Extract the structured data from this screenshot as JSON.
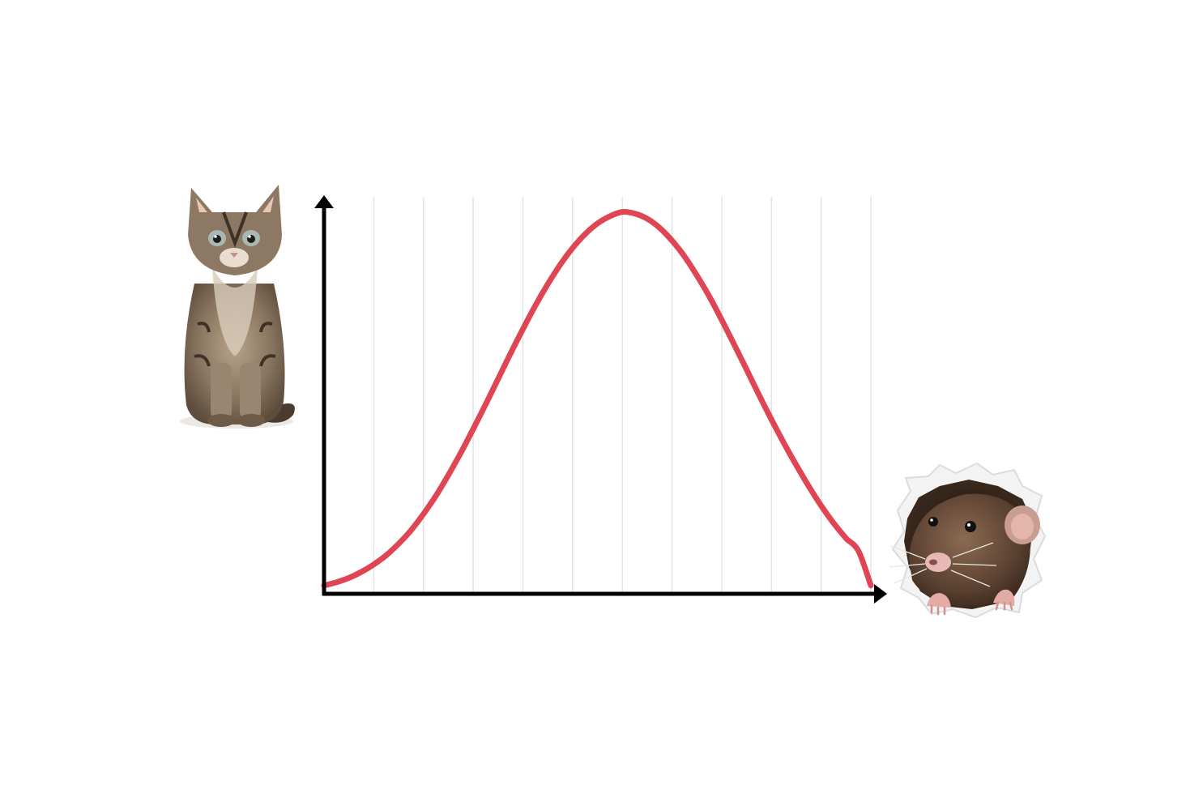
{
  "chart_data": {
    "type": "line",
    "title": "",
    "xlabel": "",
    "ylabel": "",
    "xlim": [
      0,
      11
    ],
    "ylim": [
      0,
      1
    ],
    "grid": "vertical",
    "x": [
      0,
      0.25,
      0.5,
      0.75,
      1,
      1.25,
      1.5,
      1.75,
      2,
      2.25,
      2.5,
      2.75,
      3,
      3.25,
      3.5,
      3.75,
      4,
      4.25,
      4.5,
      4.75,
      5,
      5.25,
      5.5,
      5.75,
      6,
      6.25,
      6.5,
      6.75,
      7,
      7.25,
      7.5,
      7.75,
      8,
      8.25,
      8.5,
      8.75,
      9,
      9.25,
      9.5,
      9.75,
      10,
      10.25,
      10.5,
      10.75,
      11
    ],
    "series": [
      {
        "values": [
          0.021,
          0.029,
          0.04,
          0.055,
          0.074,
          0.097,
          0.126,
          0.16,
          0.201,
          0.247,
          0.299,
          0.355,
          0.415,
          0.477,
          0.541,
          0.605,
          0.667,
          0.726,
          0.78,
          0.829,
          0.871,
          0.906,
          0.933,
          0.951,
          0.962,
          0.958,
          0.945,
          0.922,
          0.89,
          0.85,
          0.802,
          0.749,
          0.69,
          0.628,
          0.565,
          0.501,
          0.439,
          0.38,
          0.324,
          0.271,
          0.222,
          0.178,
          0.14,
          0.108,
          0.021
        ]
      }
    ],
    "colors": {
      "curve": "#e04553",
      "axis": "#000000",
      "grid": "#e3e3e3"
    }
  },
  "illustrations": {
    "left": "kitten",
    "right": "rat-peeking-through-paper-hole"
  }
}
